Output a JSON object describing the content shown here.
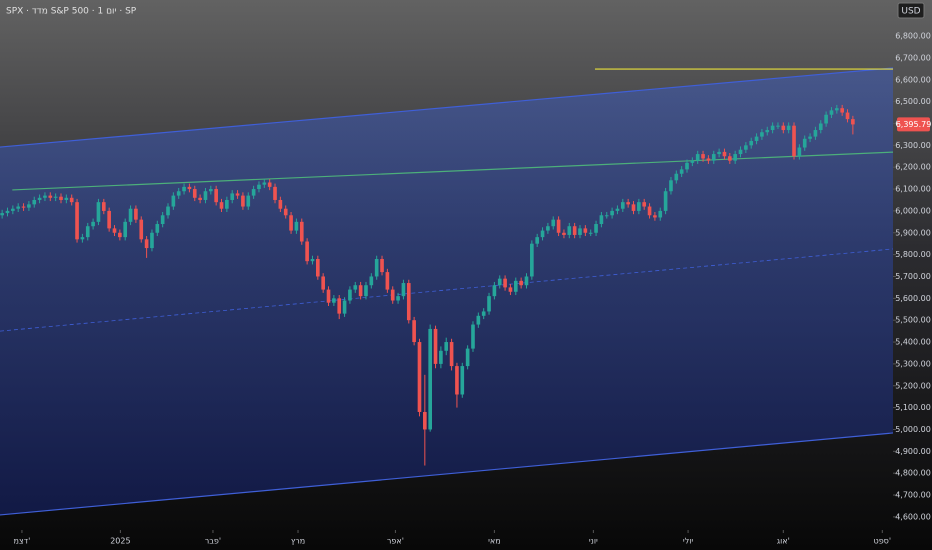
{
  "chart_data": {
    "type": "candlestick",
    "title": "SPX · מדד S&P 500 · 1 יום · SP",
    "currency": "USD",
    "up_color": "#26a69a",
    "down_color": "#ef5350",
    "xlim": [
      -0.4,
      166.5
    ],
    "ylim": [
      4540,
      6965
    ],
    "xticks": [
      {
        "value": 3.7,
        "label": "דצמ'"
      },
      {
        "value": 22.1,
        "label": "2025"
      },
      {
        "value": 39.4,
        "label": "פבר'"
      },
      {
        "value": 55.3,
        "label": "מרץ"
      },
      {
        "value": 73.5,
        "label": "אפר'"
      },
      {
        "value": 92,
        "label": "מאי"
      },
      {
        "value": 110.5,
        "label": "יוני"
      },
      {
        "value": 128.2,
        "label": "יולי"
      },
      {
        "value": 146,
        "label": "אוג'"
      },
      {
        "value": 164.5,
        "label": "ספט'"
      }
    ],
    "yticks": [
      {
        "value": 4600,
        "label": "4,600.00"
      },
      {
        "value": 4700,
        "label": "4,700.00"
      },
      {
        "value": 4800,
        "label": "4,800.00"
      },
      {
        "value": 4900,
        "label": "4,900.00"
      },
      {
        "value": 5000,
        "label": "5,000.00"
      },
      {
        "value": 5100,
        "label": "5,100.00"
      },
      {
        "value": 5200,
        "label": "5,200.00"
      },
      {
        "value": 5300,
        "label": "5,300.00"
      },
      {
        "value": 5400,
        "label": "5,400.00"
      },
      {
        "value": 5500,
        "label": "5,500.00"
      },
      {
        "value": 5600,
        "label": "5,600.00"
      },
      {
        "value": 5700,
        "label": "5,700.00"
      },
      {
        "value": 5800,
        "label": "5,800.00"
      },
      {
        "value": 5900,
        "label": "5,900.00"
      },
      {
        "value": 6000,
        "label": "6,000.00"
      },
      {
        "value": 6100,
        "label": "6,100.00"
      },
      {
        "value": 6200,
        "label": "6,200.00"
      },
      {
        "value": 6300,
        "label": "6,300.00"
      },
      {
        "value": 6400,
        "label": "6,400.00"
      },
      {
        "value": 6500,
        "label": "6,500.00"
      },
      {
        "value": 6600,
        "label": "6,600.00"
      },
      {
        "value": 6700,
        "label": "6,700.00"
      },
      {
        "value": 6800,
        "label": "6,800.00"
      }
    ],
    "last_value_label": "6,395.79",
    "open": [
      5980,
      5990,
      6000,
      6010,
      6020,
      6015,
      6030,
      6050,
      6060,
      6070,
      6060,
      6065,
      6050,
      6060,
      6040,
      5870,
      5880,
      5930,
      5950,
      6040,
      6000,
      5920,
      5900,
      5880,
      5950,
      6010,
      5960,
      5870,
      5830,
      5900,
      5940,
      5980,
      6020,
      6070,
      6090,
      6110,
      6100,
      6060,
      6050,
      6090,
      6100,
      6040,
      6010,
      6050,
      6080,
      6070,
      6020,
      6070,
      6100,
      6120,
      6130,
      6110,
      6050,
      6010,
      5980,
      5910,
      5950,
      5860,
      5770,
      5780,
      5700,
      5640,
      5580,
      5600,
      5530,
      5590,
      5640,
      5660,
      5610,
      5660,
      5700,
      5780,
      5720,
      5640,
      5590,
      5610,
      5670,
      5500,
      5400,
      5080,
      5000,
      5460,
      5300,
      5360,
      5400,
      5290,
      5160,
      5290,
      5370,
      5480,
      5520,
      5540,
      5610,
      5660,
      5690,
      5650,
      5630,
      5680,
      5660,
      5700,
      5850,
      5880,
      5910,
      5930,
      5960,
      5900,
      5890,
      5930,
      5890,
      5920,
      5900,
      5900,
      5940,
      5980,
      5980,
      6000,
      6010,
      6040,
      6030,
      6000,
      6040,
      6020,
      5980,
      5970,
      6000,
      6090,
      6140,
      6170,
      6190,
      6220,
      6230,
      6260,
      6240,
      6230,
      6260,
      6270,
      6250,
      6230,
      6260,
      6280,
      6300,
      6320,
      6340,
      6360,
      6370,
      6390,
      6390,
      6370,
      6390,
      6250,
      6290,
      6330,
      6340,
      6370,
      6400,
      6440,
      6460,
      6470,
      6450,
      6420
    ],
    "high": [
      6005,
      6015,
      6025,
      6035,
      6035,
      6045,
      6065,
      6075,
      6085,
      6085,
      6080,
      6080,
      6075,
      6075,
      6055,
      5895,
      5945,
      5965,
      6055,
      6055,
      6015,
      5935,
      5915,
      5965,
      6025,
      6025,
      5975,
      5885,
      5915,
      5955,
      5995,
      6035,
      6085,
      6105,
      6125,
      6125,
      6115,
      6075,
      6105,
      6115,
      6115,
      6055,
      6065,
      6095,
      6095,
      6085,
      6085,
      6115,
      6135,
      6145,
      6145,
      6125,
      6065,
      6025,
      5995,
      5965,
      5965,
      5875,
      5795,
      5795,
      5715,
      5655,
      5615,
      5615,
      5605,
      5655,
      5675,
      5675,
      5675,
      5715,
      5795,
      5795,
      5735,
      5655,
      5625,
      5685,
      5685,
      5515,
      5415,
      5250,
      5480,
      5475,
      5380,
      5420,
      5415,
      5305,
      5305,
      5385,
      5495,
      5535,
      5555,
      5625,
      5675,
      5705,
      5705,
      5665,
      5695,
      5695,
      5715,
      5865,
      5895,
      5925,
      5945,
      5975,
      5975,
      5915,
      5945,
      5945,
      5935,
      5935,
      5915,
      5955,
      5995,
      5995,
      6015,
      6025,
      6055,
      6055,
      6045,
      6055,
      6055,
      6035,
      5995,
      6015,
      6105,
      6155,
      6185,
      6205,
      6235,
      6245,
      6275,
      6275,
      6255,
      6275,
      6285,
      6285,
      6265,
      6275,
      6295,
      6315,
      6335,
      6355,
      6375,
      6385,
      6405,
      6405,
      6405,
      6405,
      6405,
      6305,
      6345,
      6355,
      6385,
      6415,
      6455,
      6475,
      6485,
      6485,
      6465,
      6435
    ],
    "low": [
      5965,
      5975,
      5985,
      5995,
      6000,
      6000,
      6015,
      6035,
      6045,
      6045,
      6045,
      6035,
      6035,
      6025,
      5855,
      5855,
      5865,
      5915,
      5935,
      5985,
      5905,
      5885,
      5865,
      5865,
      5935,
      5945,
      5855,
      5785,
      5815,
      5885,
      5925,
      5965,
      6005,
      6055,
      6075,
      6085,
      6045,
      6035,
      6035,
      6075,
      6025,
      5995,
      5995,
      6035,
      6055,
      6005,
      6005,
      6055,
      6085,
      6105,
      6095,
      6035,
      5995,
      5965,
      5895,
      5895,
      5845,
      5755,
      5755,
      5685,
      5625,
      5565,
      5565,
      5505,
      5515,
      5575,
      5625,
      5595,
      5595,
      5645,
      5685,
      5705,
      5625,
      5575,
      5575,
      5595,
      5485,
      5385,
      5060,
      4835,
      4990,
      5280,
      5280,
      5340,
      5270,
      5100,
      5145,
      5275,
      5355,
      5465,
      5505,
      5525,
      5595,
      5645,
      5635,
      5615,
      5615,
      5645,
      5645,
      5685,
      5835,
      5865,
      5895,
      5915,
      5885,
      5875,
      5875,
      5875,
      5875,
      5885,
      5885,
      5885,
      5925,
      5965,
      5965,
      5985,
      5995,
      6015,
      5985,
      5985,
      6005,
      5965,
      5955,
      5955,
      5985,
      6075,
      6125,
      6155,
      6175,
      6205,
      6215,
      6225,
      6215,
      6215,
      6245,
      6235,
      6215,
      6215,
      6245,
      6265,
      6285,
      6305,
      6325,
      6345,
      6355,
      6375,
      6355,
      6355,
      6235,
      6235,
      6275,
      6315,
      6325,
      6355,
      6385,
      6425,
      6445,
      6435,
      6405,
      6350
    ],
    "close": [
      5990,
      6000,
      6010,
      6020,
      6015,
      6030,
      6050,
      6060,
      6070,
      6060,
      6065,
      6050,
      6060,
      6040,
      5870,
      5880,
      5930,
      5950,
      6040,
      6000,
      5920,
      5900,
      5880,
      5950,
      6010,
      5960,
      5870,
      5830,
      5900,
      5940,
      5980,
      6020,
      6070,
      6090,
      6110,
      6100,
      6060,
      6050,
      6090,
      6100,
      6040,
      6010,
      6050,
      6080,
      6070,
      6020,
      6070,
      6100,
      6120,
      6130,
      6110,
      6050,
      6010,
      5980,
      5910,
      5950,
      5860,
      5770,
      5780,
      5700,
      5640,
      5580,
      5600,
      5530,
      5590,
      5640,
      5660,
      5610,
      5660,
      5700,
      5780,
      5720,
      5640,
      5590,
      5610,
      5670,
      5500,
      5400,
      5080,
      5000,
      5460,
      5300,
      5360,
      5400,
      5290,
      5160,
      5290,
      5370,
      5480,
      5520,
      5540,
      5610,
      5660,
      5690,
      5650,
      5630,
      5680,
      5660,
      5700,
      5850,
      5880,
      5910,
      5930,
      5960,
      5900,
      5890,
      5930,
      5890,
      5920,
      5900,
      5900,
      5940,
      5980,
      5980,
      6000,
      6010,
      6040,
      6030,
      6000,
      6040,
      6020,
      5980,
      5970,
      6000,
      6090,
      6140,
      6170,
      6190,
      6220,
      6230,
      6260,
      6240,
      6230,
      6260,
      6270,
      6250,
      6230,
      6260,
      6280,
      6300,
      6320,
      6340,
      6360,
      6370,
      6390,
      6390,
      6370,
      6390,
      6250,
      6290,
      6330,
      6340,
      6370,
      6400,
      6440,
      6460,
      6470,
      6450,
      6420,
      6395.79
    ],
    "channel": {
      "upper": {
        "x": [
          -0.4,
          166.5
        ],
        "values": [
          6292,
          6654
        ]
      },
      "lower": {
        "x": [
          -0.4,
          166.5
        ],
        "values": [
          4609,
          4984
        ]
      },
      "middle": {
        "x": [
          -0.4,
          166.5
        ],
        "values": [
          5450,
          5826
        ]
      },
      "color": "#3f5fd8"
    },
    "trend_lines": [
      {
        "x": [
          1.9,
          166.5
        ],
        "values": [
          6096,
          6269
        ],
        "color": "#4caf7a",
        "dashed": false
      },
      {
        "x": [
          110.8,
          166.5
        ],
        "values": [
          6649,
          6649
        ],
        "color": "#e8e03a",
        "dashed": false
      }
    ]
  }
}
